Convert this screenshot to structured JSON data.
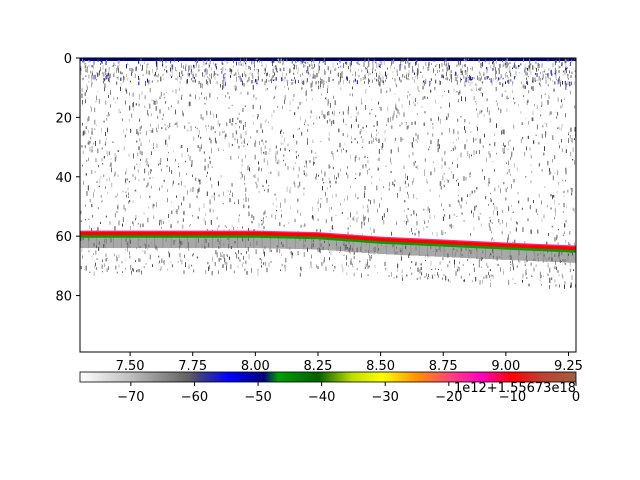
{
  "chart_data": {
    "type": "heatmap",
    "title": "",
    "xlabel": "",
    "ylabel": "",
    "x_ticks": [
      "7.50",
      "7.75",
      "8.00",
      "8.25",
      "8.50",
      "8.75",
      "9.00",
      "9.25"
    ],
    "x_tick_values": [
      7.5,
      7.75,
      8.0,
      8.25,
      8.5,
      8.75,
      9.0,
      9.25
    ],
    "x_offset_text": "1e12+1.55673e18",
    "xlim": [
      7.3,
      9.28
    ],
    "y_ticks": [
      "0",
      "20",
      "40",
      "60",
      "80"
    ],
    "y_tick_values": [
      0,
      20,
      40,
      60,
      80
    ],
    "ylim": [
      99,
      0
    ],
    "y_inverted": true,
    "bottom_line_depth": [
      {
        "x": 7.3,
        "y": 59
      },
      {
        "x": 8.0,
        "y": 59
      },
      {
        "x": 8.25,
        "y": 59.5
      },
      {
        "x": 8.5,
        "y": 61
      },
      {
        "x": 8.75,
        "y": 62
      },
      {
        "x": 9.0,
        "y": 63
      },
      {
        "x": 9.28,
        "y": 64
      }
    ],
    "colorbar": {
      "ticks": [
        "−70",
        "−60",
        "−50",
        "−40",
        "−30",
        "−20",
        "−10",
        "0"
      ],
      "tick_values": [
        -70,
        -60,
        -50,
        -40,
        -30,
        -20,
        -10,
        0
      ],
      "range": [
        -78,
        0
      ],
      "colors": [
        "#ffffff",
        "#808080",
        "#404040",
        "#0000ff",
        "#000080",
        "#00c000",
        "#006400",
        "#ffff00",
        "#ff8000",
        "#ff00c0",
        "#ff0000",
        "#a06040"
      ],
      "grid": false
    }
  }
}
